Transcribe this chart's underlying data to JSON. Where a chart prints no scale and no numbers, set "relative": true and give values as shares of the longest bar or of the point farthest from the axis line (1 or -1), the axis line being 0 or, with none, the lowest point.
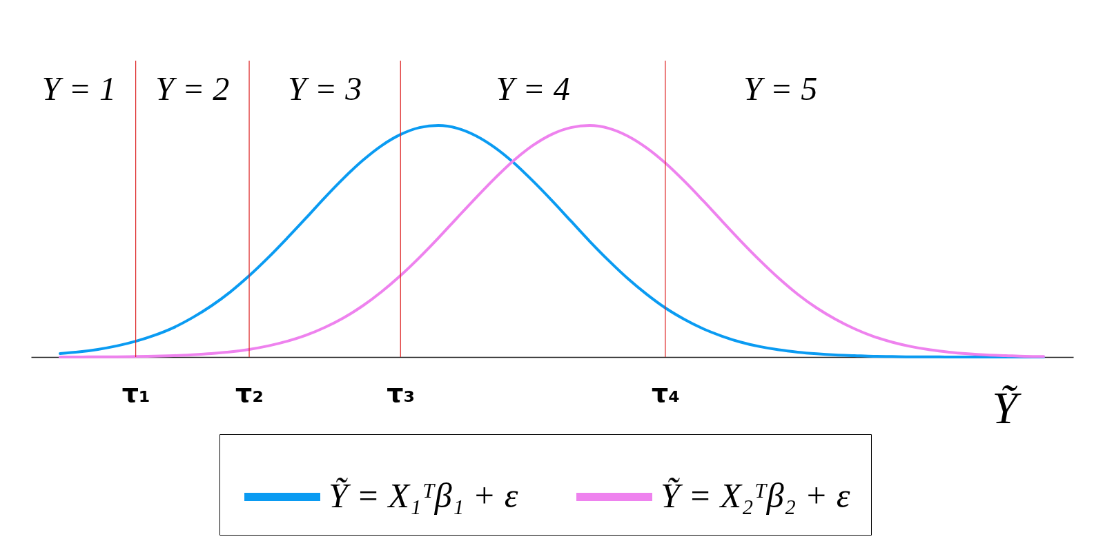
{
  "chart_data": {
    "type": "line",
    "relative": true,
    "xlabel": "Ỹ",
    "legend": "bottom",
    "line_style": "solid",
    "categories": [
      null,
      null,
      null,
      null,
      "τ₁",
      null,
      null,
      null,
      null,
      null,
      "τ₂",
      null,
      null,
      null,
      null,
      null,
      null,
      null,
      "τ₃",
      null,
      null,
      null,
      null,
      null,
      null,
      null,
      null,
      null,
      null,
      null,
      null,
      null,
      "τ₄",
      null,
      null,
      null,
      null,
      null,
      null,
      null,
      null,
      null,
      null,
      null,
      null,
      null,
      null,
      null,
      null,
      null,
      null,
      null,
      null
    ],
    "series": [
      {
        "name": "Ỹ = X₁ᵀβ₁ + ε",
        "color": "#0a9bf2",
        "values": [
          0.015,
          0.022,
          0.033,
          0.048,
          0.068,
          0.094,
          0.127,
          0.17,
          0.221,
          0.281,
          0.351,
          0.429,
          0.513,
          0.6,
          0.689,
          0.773,
          0.849,
          0.913,
          0.961,
          0.991,
          1,
          0.988,
          0.955,
          0.904,
          0.838,
          0.76,
          0.676,
          0.588,
          0.5,
          0.417,
          0.34,
          0.272,
          0.212,
          0.163,
          0.122,
          0.09,
          0.064,
          0.045,
          0.031,
          0.021,
          0.014,
          0.009,
          0.006,
          0.003,
          0.002,
          0.001,
          0.001,
          0,
          0,
          0,
          0,
          0,
          0
        ]
      },
      {
        "name": "Ỹ = X₂ᵀβ₂ + ε",
        "color": "#ee82ee",
        "values": [
          0,
          0,
          0.001,
          0.001,
          0.002,
          0.004,
          0.006,
          0.01,
          0.015,
          0.022,
          0.033,
          0.048,
          0.068,
          0.094,
          0.128,
          0.17,
          0.221,
          0.282,
          0.352,
          0.43,
          0.514,
          0.602,
          0.689,
          0.773,
          0.85,
          0.914,
          0.962,
          0.991,
          1,
          0.988,
          0.955,
          0.904,
          0.838,
          0.76,
          0.675,
          0.587,
          0.5,
          0.417,
          0.34,
          0.271,
          0.212,
          0.163,
          0.122,
          0.089,
          0.064,
          0.045,
          0.031,
          0.021,
          0.014,
          0.009,
          0.006,
          0.003,
          0.002
        ]
      }
    ],
    "ref_lines": [
      {
        "axis": "x",
        "value": "τ₁",
        "color": "#dd2222"
      },
      {
        "axis": "x",
        "value": "τ₂",
        "color": "#dd2222"
      },
      {
        "axis": "x",
        "value": "τ₃",
        "color": "#dd2222"
      },
      {
        "axis": "x",
        "value": "τ₄",
        "color": "#dd2222"
      }
    ],
    "annotations": [
      "Y = 1",
      "Y = 2",
      "Y = 3",
      "Y = 4",
      "Y = 5"
    ]
  }
}
